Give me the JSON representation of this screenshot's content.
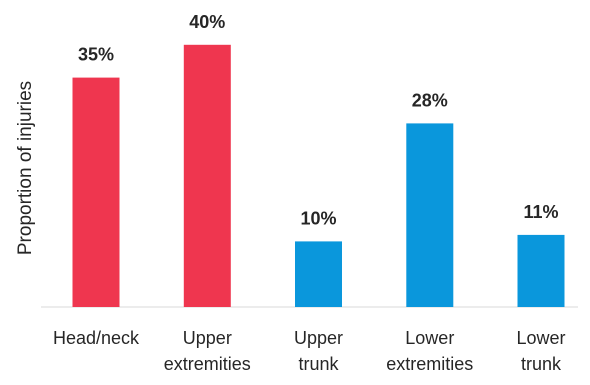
{
  "chart_data": {
    "type": "bar",
    "ylabel": "Proportion of injuries",
    "categories": [
      [
        "Head/neck"
      ],
      [
        "Upper",
        "extremities"
      ],
      [
        "Upper",
        "trunk"
      ],
      [
        "Lower",
        "extremities"
      ],
      [
        "Lower",
        "trunk"
      ]
    ],
    "values": [
      35,
      40,
      10,
      28,
      11
    ],
    "value_labels": [
      "35%",
      "40%",
      "10%",
      "28%",
      "11%"
    ],
    "bar_colors": [
      "#ef364f",
      "#ef364f",
      "#0a97dc",
      "#0a97dc",
      "#0a97dc"
    ],
    "ylim": [
      0,
      45
    ],
    "grid": false,
    "legend": "none"
  }
}
